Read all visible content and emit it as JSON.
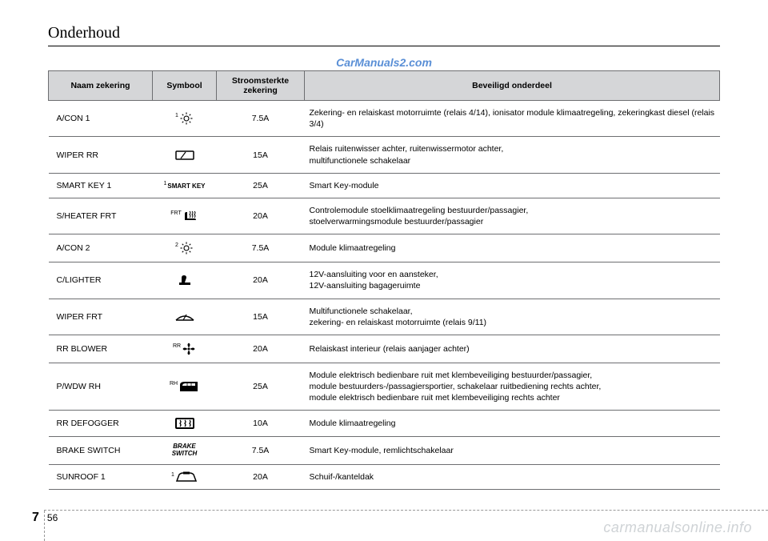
{
  "page_title": "Onderhoud",
  "watermark_top": "CarManuals2.com",
  "watermark_bottom": "carmanualsonline.info",
  "chapter_number": "7",
  "page_number": "56",
  "headers": {
    "name": "Naam zekering",
    "symbol": "Symbool",
    "amperage": "Stroomsterkte zekering",
    "protected": "Beveiligd onderdeel"
  },
  "rows": [
    {
      "name": "A/CON 1",
      "symbol_type": "sun",
      "symbol_sup": "1",
      "amperage": "7.5A",
      "desc": "Zekering- en relaiskast motorruimte (relais 4/14), ionisator module klimaatregeling, zekeringkast diesel (relais 3/4)"
    },
    {
      "name": "WIPER RR",
      "symbol_type": "wiper-rr",
      "amperage": "15A",
      "desc": "Relais ruitenwisser achter, ruitenwissermotor achter,\nmultifunctionele schakelaar"
    },
    {
      "name": "SMART KEY 1",
      "symbol_type": "text",
      "symbol_sup": "1",
      "symbol_text": "SMART KEY",
      "amperage": "25A",
      "desc": "Smart Key-module"
    },
    {
      "name": "S/HEATER FRT",
      "symbol_type": "seat-heat",
      "symbol_sup": "FRT",
      "amperage": "20A",
      "desc": "Controlemodule stoelklimaatregeling bestuurder/passagier,\nstoelverwarmingsmodule bestuurder/passagier"
    },
    {
      "name": "A/CON 2",
      "symbol_type": "sun",
      "symbol_sup": "2",
      "amperage": "7.5A",
      "desc": "Module klimaatregeling"
    },
    {
      "name": "C/LIGHTER",
      "symbol_type": "lighter",
      "amperage": "20A",
      "desc": "12V-aansluiting voor en aansteker,\n12V-aansluiting bagageruimte"
    },
    {
      "name": "WIPER FRT",
      "symbol_type": "wiper-frt",
      "amperage": "15A",
      "desc": "Multifunctionele schakelaar,\nzekering- en relaiskast motorruimte (relais 9/11)"
    },
    {
      "name": "RR BLOWER",
      "symbol_type": "fan",
      "symbol_sup": "RR",
      "amperage": "20A",
      "desc": "Relaiskast interieur (relais aanjager achter)"
    },
    {
      "name": "P/WDW RH",
      "symbol_type": "window",
      "symbol_sup": "RH",
      "amperage": "25A",
      "desc": "Module elektrisch bedienbare ruit met klembeveiliging bestuurder/passagier,\nmodule bestuurders-/passagiersportier, schakelaar ruitbediening rechts achter,\nmodule elektrisch bedienbare ruit met klembeveiliging rechts achter"
    },
    {
      "name": "RR DEFOGGER",
      "symbol_type": "defog",
      "amperage": "10A",
      "desc": "Module klimaatregeling"
    },
    {
      "name": "BRAKE SWITCH",
      "symbol_type": "text-brake",
      "symbol_text": "BRAKE\nSWITCH",
      "amperage": "7.5A",
      "desc": "Smart Key-module, remlichtschakelaar"
    },
    {
      "name": "SUNROOF 1",
      "symbol_type": "sunroof",
      "symbol_sup": "1",
      "amperage": "20A",
      "desc": "Schuif-/kanteldak"
    }
  ]
}
